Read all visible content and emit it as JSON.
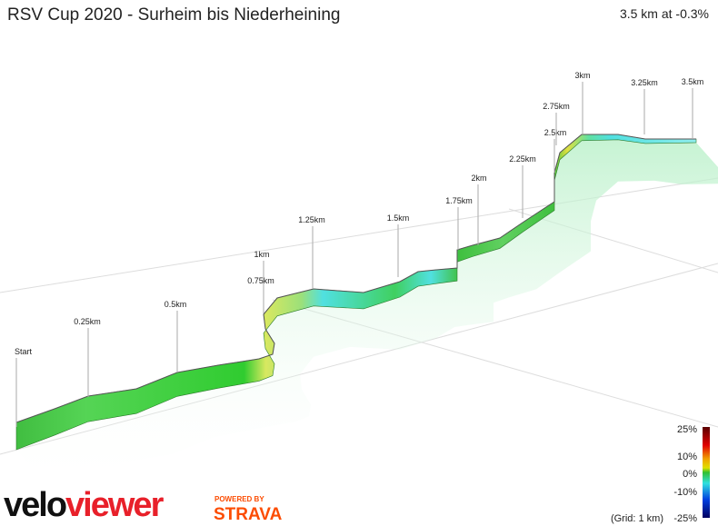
{
  "header": {
    "title": "RSV Cup 2020 - Surheim bis Niederheining",
    "summary": "3.5 km at -0.3%"
  },
  "markers": [
    "Start",
    "0.25km",
    "0.5km",
    "0.75km",
    "1km",
    "1.25km",
    "1.5km",
    "1.75km",
    "2km",
    "2.25km",
    "2.5km",
    "2.75km",
    "3km",
    "3.25km",
    "3.5km"
  ],
  "legend": {
    "labels": [
      "25%",
      "10%",
      "0%",
      "-10%",
      "-25%"
    ],
    "grid": "(Grid: 1 km)"
  },
  "branding": {
    "velo": "velo",
    "viewer": "viewer",
    "powered": "POWERED BY",
    "strava": "STRAVA"
  }
}
